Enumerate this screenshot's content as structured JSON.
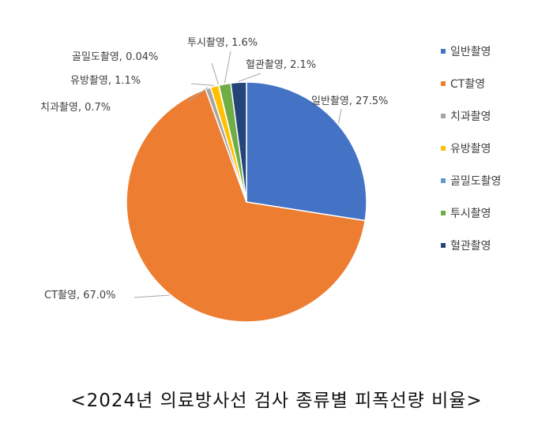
{
  "chart_data": {
    "type": "pie",
    "categories": [
      "일반촬영",
      "CT촬영",
      "치과촬영",
      "유방촬영",
      "골밀도촬영",
      "투시촬영",
      "혈관촬영"
    ],
    "values": [
      27.5,
      67.0,
      0.7,
      1.1,
      0.04,
      1.6,
      2.1
    ],
    "data_labels": [
      "일반촬영, 27.5%",
      "CT촬영, 67.0%",
      "치과촬영, 0.7%",
      "유방촬영, 1.1%",
      "골밀도촬영, 0.04%",
      "투시촬영, 1.6%",
      "혈관촬영, 2.1%"
    ],
    "colors": [
      "#4472C4",
      "#ED7D31",
      "#A5A5A5",
      "#FFC000",
      "#5B9BD5",
      "#70AD47",
      "#264478"
    ],
    "legend": {
      "placement": "right"
    },
    "title": ""
  },
  "caption": "<2024년 의료방사선 검사 종류별 피폭선량 비율>"
}
